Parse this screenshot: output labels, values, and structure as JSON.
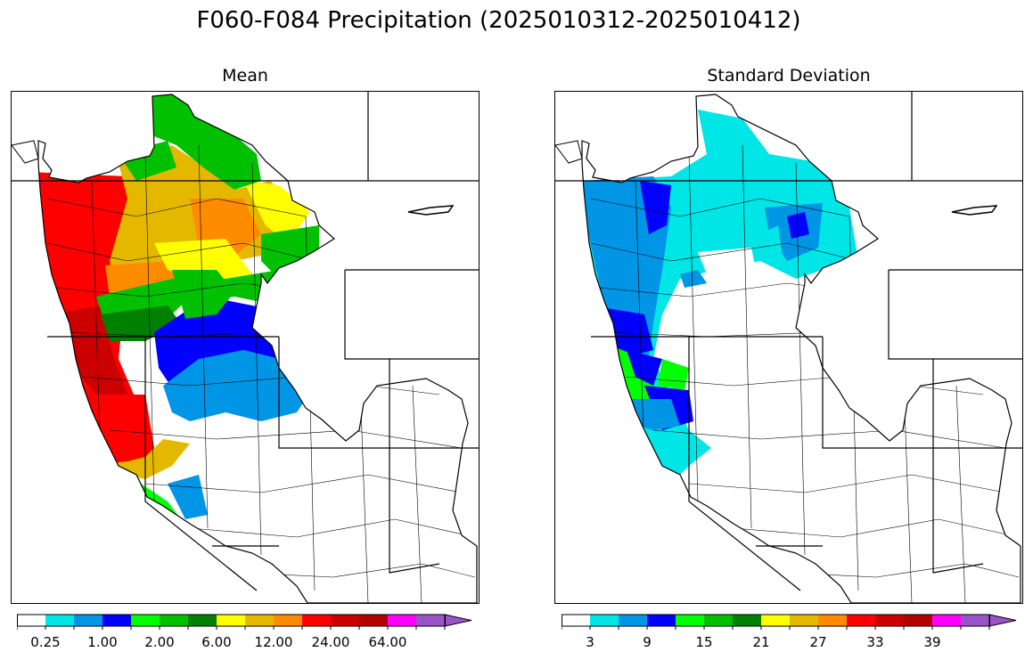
{
  "title": "F060-F084 Precipitation (2025010312-2025010412)",
  "panels": [
    {
      "title": "Mean",
      "colorbar": {
        "colors": [
          "#ffffff",
          "#00e5e5",
          "#0095e5",
          "#0000ff",
          "#00ff00",
          "#00c000",
          "#008000",
          "#ffff00",
          "#e5b800",
          "#ff8c00",
          "#ff0000",
          "#cc0000",
          "#b30000",
          "#ff00ff",
          "#9955c8"
        ],
        "tick_labels": [
          "0.25",
          "1.00",
          "2.00",
          "6.00",
          "12.00",
          "24.00",
          "64.00"
        ]
      }
    },
    {
      "title": "Standard Deviation",
      "colorbar": {
        "colors": [
          "#ffffff",
          "#00e5e5",
          "#0095e5",
          "#0000ff",
          "#00ff00",
          "#00c000",
          "#008000",
          "#ffff00",
          "#e5b800",
          "#ff8c00",
          "#ff0000",
          "#cc0000",
          "#b30000",
          "#ff00ff",
          "#9955c8"
        ],
        "tick_labels": [
          "3",
          "9",
          "15",
          "21",
          "27",
          "33",
          "39"
        ]
      }
    }
  ]
}
